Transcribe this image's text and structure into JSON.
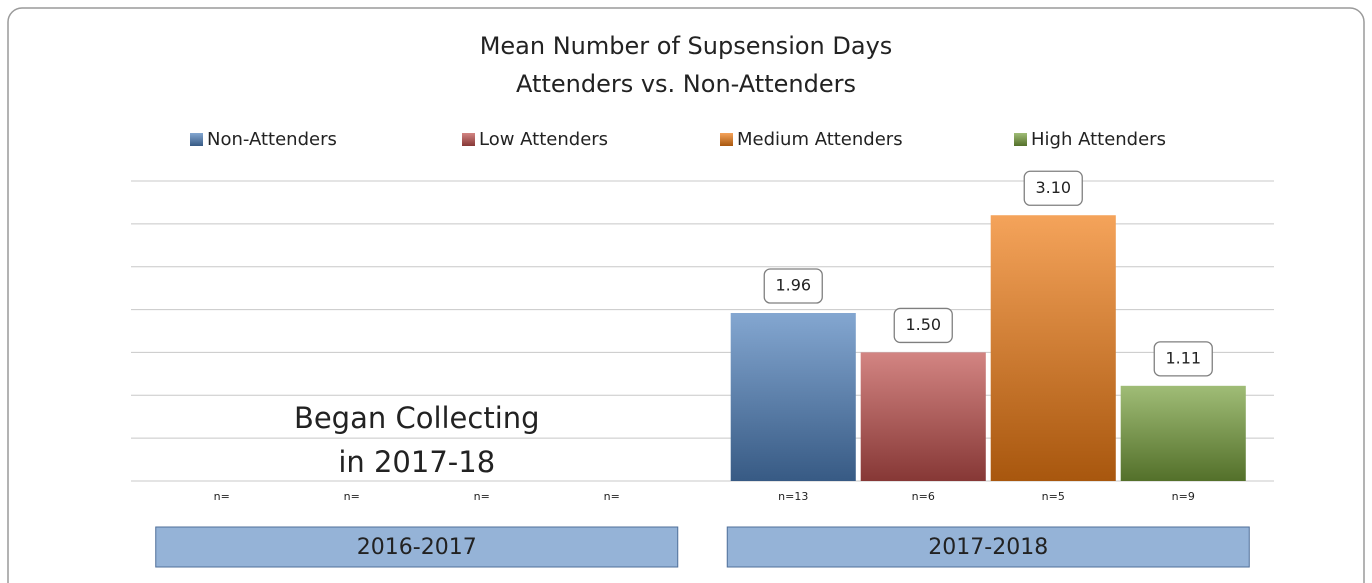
{
  "chart_data": {
    "type": "bar",
    "title": [
      "Mean Number of Supsension Days",
      "Attenders vs. Non-Attenders"
    ],
    "categories": [
      "2016-2017",
      "2017-2018"
    ],
    "series": [
      {
        "name": "Non-Attenders",
        "color": "#4f81bd",
        "values": [
          null,
          1.96
        ],
        "value_labels": [
          null,
          "1.96"
        ],
        "n_labels": [
          "n=",
          "n=13"
        ]
      },
      {
        "name": "Low Attenders",
        "color": "#c0504d",
        "values": [
          null,
          1.5
        ],
        "value_labels": [
          null,
          "1.50"
        ],
        "n_labels": [
          "n=",
          "n=6"
        ]
      },
      {
        "name": "Medium Attenders",
        "color": "#f07c14",
        "values": [
          null,
          3.1
        ],
        "value_labels": [
          null,
          "3.10"
        ],
        "n_labels": [
          "n=",
          "n=5"
        ]
      },
      {
        "name": "High Attenders",
        "color": "#77a03c",
        "values": [
          null,
          1.11
        ],
        "value_labels": [
          null,
          "1.11"
        ],
        "n_labels": [
          "n=",
          "n=9"
        ]
      }
    ],
    "annotation": [
      "Began Collecting",
      "in 2017-18"
    ],
    "annotation_color": "#e46c0a",
    "ylim": [
      0,
      3.5
    ],
    "yticks": [
      0,
      0.5,
      1,
      1.5,
      2,
      2.5,
      3,
      3.5
    ],
    "grid": true,
    "legend": "top"
  }
}
